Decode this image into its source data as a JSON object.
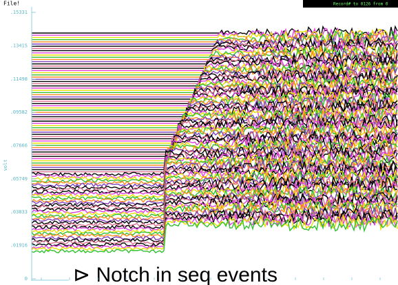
{
  "header": {
    "file_label": "File!",
    "record": "Record# to 0126 from 0"
  },
  "chart_data": {
    "type": "line",
    "ylabel": "volt",
    "ylim": [
      0,
      0.15331
    ],
    "yticks": [
      0,
      {
        "value": 0.01916,
        "label": ".01916"
      },
      {
        "value": 0.03833,
        "label": ".03833"
      },
      {
        "value": 0.05749,
        "label": ".05749"
      },
      {
        "value": 0.07666,
        "label": ".07666"
      },
      {
        "value": 0.09582,
        "label": ".09582"
      },
      {
        "value": 0.11498,
        "label": ".11498"
      },
      {
        "value": 0.13415,
        "label": ".13415"
      },
      {
        "value": 0.15331,
        "label": ".15331"
      }
    ],
    "annotation": "⊳ Notch in seq events"
  }
}
